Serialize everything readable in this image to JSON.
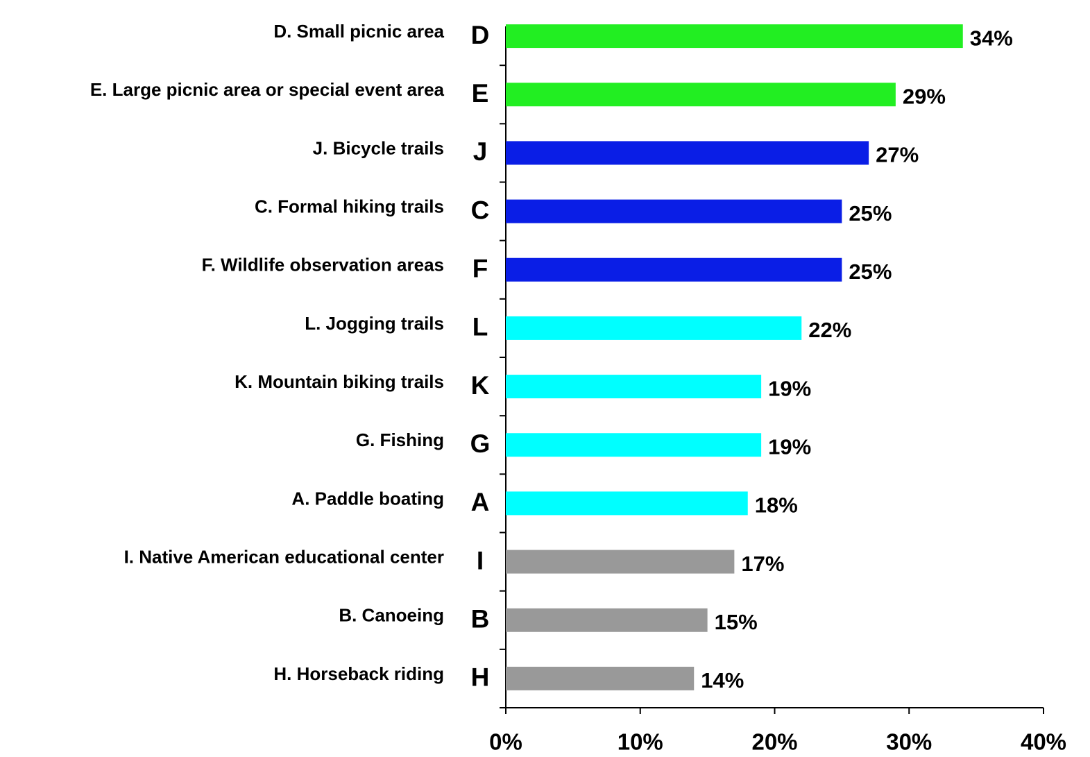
{
  "chart_data": {
    "type": "bar",
    "orientation": "horizontal",
    "categories": [
      "D. Small picnic area",
      "E. Large picnic area or special event area",
      "J. Bicycle trails",
      "C. Formal hiking trails",
      "F. Wildlife observation areas",
      "L. Jogging trails",
      "K. Mountain biking trails",
      "G. Fishing",
      "A. Paddle boating",
      "I. Native American educational center",
      "B. Canoeing",
      "H. Horseback riding"
    ],
    "letters": [
      "D",
      "E",
      "J",
      "C",
      "F",
      "L",
      "K",
      "G",
      "A",
      "I",
      "B",
      "H"
    ],
    "letter_color": "#1010e6",
    "values": [
      34,
      29,
      27,
      25,
      25,
      22,
      19,
      19,
      18,
      17,
      15,
      14
    ],
    "value_labels": [
      "34%",
      "29%",
      "27%",
      "25%",
      "25%",
      "22%",
      "19%",
      "19%",
      "18%",
      "17%",
      "15%",
      "14%"
    ],
    "colors": [
      "#22ee22",
      "#22ee22",
      "#0a1ee6",
      "#0a1ee6",
      "#0a1ee6",
      "#00ffff",
      "#00ffff",
      "#00ffff",
      "#00ffff",
      "#999999",
      "#999999",
      "#999999"
    ],
    "xlim": [
      0,
      40
    ],
    "xticks": [
      {
        "value": 0,
        "label": "0%"
      },
      {
        "value": 10,
        "label": "10%"
      },
      {
        "value": 20,
        "label": "20%"
      },
      {
        "value": 30,
        "label": "30%"
      },
      {
        "value": 40,
        "label": "40%"
      }
    ],
    "grid": false
  }
}
